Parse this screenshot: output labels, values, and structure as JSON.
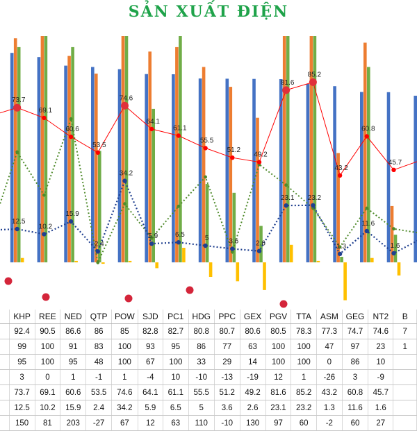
{
  "title": "SẢN XUẤT ĐIỆN",
  "chart_data": {
    "type": "bar",
    "categories": [
      "",
      "KHP",
      "REE",
      "NED",
      "QTP",
      "POW",
      "SJD",
      "PC1",
      "HDG",
      "PPC",
      "GEX",
      "PGV",
      "TTA",
      "ASM",
      "GEG",
      "NT2",
      "BSR"
    ],
    "visible_category_labels": [
      "KHP",
      "REE",
      "NED",
      "QTP",
      "POW",
      "SJD",
      "PC1",
      "HDG",
      "PPC",
      "GEX",
      "PGV",
      "TTA",
      "ASM",
      "GEG",
      "NT2",
      "B"
    ],
    "bar_series": [
      {
        "color": "#4472c4",
        "values": [
          95,
          92.4,
          90.5,
          86.6,
          86,
          85,
          82.8,
          82.7,
          80.8,
          80.7,
          80.6,
          80.5,
          78.3,
          77.3,
          74.7,
          74.6,
          73
        ]
      },
      {
        "color": "#ed7d31",
        "values": [
          99,
          99,
          100,
          91,
          83,
          100,
          93,
          95,
          86,
          77,
          63,
          100,
          100,
          47,
          97,
          23,
          100
        ]
      },
      {
        "color": "#70ad47",
        "values": [
          95,
          95,
          100,
          95,
          48,
          100,
          67,
          100,
          33,
          29,
          14,
          100,
          100,
          0,
          86,
          10,
          100
        ]
      },
      {
        "color": "#ffc000",
        "values": [
          -3,
          3,
          0,
          1,
          -1,
          1,
          -4,
          10,
          -10,
          -13,
          -19,
          12,
          1,
          -26,
          3,
          -9,
          0
        ]
      }
    ],
    "line_red": {
      "color": "#ff0000",
      "values": [
        70,
        73.7,
        69.1,
        60.6,
        53.5,
        74.6,
        64.1,
        61.1,
        55.5,
        51.2,
        49.2,
        81.6,
        85.2,
        43.2,
        60.8,
        45.7,
        50
      ]
    },
    "line_blue": {
      "color": "#1f3f8f",
      "values": [
        12,
        12.5,
        10.2,
        15.9,
        2.4,
        34.2,
        5.9,
        6.5,
        5,
        3.6,
        2.6,
        23.1,
        23.2,
        1.3,
        11.6,
        1.6,
        8
      ]
    },
    "line_green": {
      "color": "#4f8a2b",
      "values": [
        20,
        150,
        81,
        203,
        -27,
        67,
        12,
        63,
        110,
        -10,
        130,
        97,
        60,
        -2,
        60,
        27,
        20
      ]
    },
    "table_rows": [
      [
        "KHP",
        "REE",
        "NED",
        "QTP",
        "POW",
        "SJD",
        "PC1",
        "HDG",
        "PPC",
        "GEX",
        "PGV",
        "TTA",
        "ASM",
        "GEG",
        "NT2",
        "B"
      ],
      [
        "",
        "92.4",
        "90.5",
        "86.6",
        "86",
        "85",
        "82.8",
        "82.7",
        "80.8",
        "80.7",
        "80.6",
        "80.5",
        "78.3",
        "77.3",
        "74.7",
        "74.6",
        "7"
      ],
      [
        "",
        "99",
        "100",
        "91",
        "83",
        "100",
        "93",
        "95",
        "86",
        "77",
        "63",
        "100",
        "100",
        "47",
        "97",
        "23",
        "1"
      ],
      [
        "",
        "95",
        "100",
        "95",
        "48",
        "100",
        "67",
        "100",
        "33",
        "29",
        "14",
        "100",
        "100",
        "0",
        "86",
        "10",
        ""
      ],
      [
        "",
        "3",
        "0",
        "1",
        "-1",
        "1",
        "-4",
        "10",
        "-10",
        "-13",
        "-19",
        "12",
        "1",
        "-26",
        "3",
        "-9",
        ""
      ],
      [
        "",
        "73.7",
        "69.1",
        "60.6",
        "53.5",
        "74.6",
        "64.1",
        "61.1",
        "55.5",
        "51.2",
        "49.2",
        "81.6",
        "85.2",
        "43.2",
        "60.8",
        "45.7",
        ""
      ],
      [
        "",
        "12.5",
        "10.2",
        "15.9",
        "2.4",
        "34.2",
        "5.9",
        "6.5",
        "5",
        "3.6",
        "2.6",
        "23.1",
        "23.2",
        "1.3",
        "11.6",
        "1.6",
        ""
      ],
      [
        "",
        "150",
        "81",
        "203",
        "-27",
        "67",
        "12",
        "63",
        "110",
        "-10",
        "130",
        "97",
        "60",
        "-2",
        "60",
        "27",
        ""
      ]
    ],
    "legend": "none",
    "grid": false
  }
}
